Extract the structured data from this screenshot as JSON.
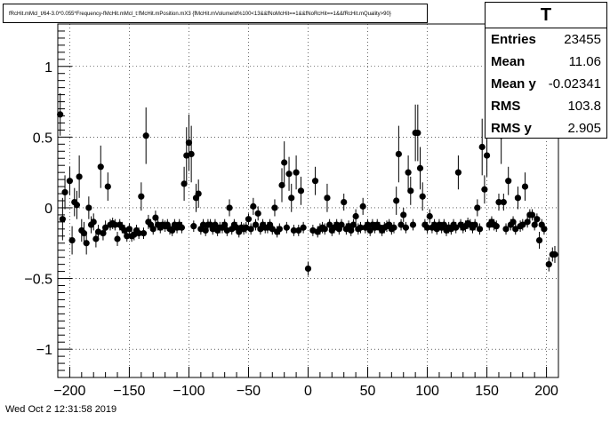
{
  "title": "fRcHit.mMcl_t/64-3.0*0.055*Frequency-fMcHit.mMcl_t:fMcHit.mPosition.mX3 {fMcHit.mVolumeId%100<13&&fNoMcHit==1&&fNoRcHit==1&&fRcHit.mQuality>90}",
  "stats": {
    "name": "T",
    "rows": [
      {
        "label": "Entries",
        "value": "23455"
      },
      {
        "label": "Mean",
        "value": "11.06"
      },
      {
        "label": "Mean y",
        "value": "-0.02341"
      },
      {
        "label": "RMS",
        "value": "103.8"
      },
      {
        "label": "RMS y",
        "value": "2.905"
      }
    ]
  },
  "footer": "Wed Oct  2 12:31:58 2019",
  "chart_data": {
    "type": "scatter",
    "title": "",
    "xlabel": "",
    "ylabel": "",
    "xlim": [
      -210,
      210
    ],
    "ylim": [
      -1.2,
      1.3
    ],
    "grid": true,
    "x_ticks": [
      -200,
      -150,
      -100,
      -50,
      0,
      50,
      100,
      150,
      200
    ],
    "x_tick_labels": [
      "−200",
      "−150",
      "−100",
      "−50",
      "0",
      "50",
      "100",
      "150",
      "200"
    ],
    "y_ticks": [
      -1,
      -0.5,
      0,
      0.5,
      1
    ],
    "y_tick_labels": [
      "−1",
      "−0.5",
      "0",
      "0.5",
      "1"
    ],
    "points": [
      {
        "x": -208,
        "y": 0.66,
        "err": 0.15
      },
      {
        "x": -206,
        "y": -0.08,
        "err": 0.15
      },
      {
        "x": -204,
        "y": 0.11,
        "err": 0.12
      },
      {
        "x": -200,
        "y": 0.19,
        "err": 0.1
      },
      {
        "x": -198,
        "y": -0.23,
        "err": 0.1
      },
      {
        "x": -196,
        "y": 0.04,
        "err": 0.1
      },
      {
        "x": -194,
        "y": 0.02,
        "err": 0.1
      },
      {
        "x": -192,
        "y": 0.22,
        "err": 0.15
      },
      {
        "x": -190,
        "y": -0.16,
        "err": 0.08
      },
      {
        "x": -188,
        "y": -0.18,
        "err": 0.08
      },
      {
        "x": -186,
        "y": -0.25,
        "err": 0.08
      },
      {
        "x": -184,
        "y": 0.0,
        "err": 0.08
      },
      {
        "x": -182,
        "y": -0.12,
        "err": 0.06
      },
      {
        "x": -180,
        "y": -0.1,
        "err": 0.06
      },
      {
        "x": -178,
        "y": -0.22,
        "err": 0.06
      },
      {
        "x": -176,
        "y": -0.17,
        "err": 0.05
      },
      {
        "x": -174,
        "y": 0.29,
        "err": 0.15
      },
      {
        "x": -172,
        "y": -0.18,
        "err": 0.05
      },
      {
        "x": -170,
        "y": -0.14,
        "err": 0.05
      },
      {
        "x": -168,
        "y": 0.15,
        "err": 0.1
      },
      {
        "x": -166,
        "y": -0.12,
        "err": 0.04
      },
      {
        "x": -164,
        "y": -0.11,
        "err": 0.04
      },
      {
        "x": -162,
        "y": -0.12,
        "err": 0.04
      },
      {
        "x": -160,
        "y": -0.22,
        "err": 0.05
      },
      {
        "x": -158,
        "y": -0.12,
        "err": 0.04
      },
      {
        "x": -156,
        "y": -0.14,
        "err": 0.04
      },
      {
        "x": -154,
        "y": -0.16,
        "err": 0.04
      },
      {
        "x": -152,
        "y": -0.2,
        "err": 0.04
      },
      {
        "x": -150,
        "y": -0.15,
        "err": 0.04
      },
      {
        "x": -148,
        "y": -0.2,
        "err": 0.04
      },
      {
        "x": -146,
        "y": -0.19,
        "err": 0.04
      },
      {
        "x": -144,
        "y": -0.16,
        "err": 0.04
      },
      {
        "x": -142,
        "y": -0.18,
        "err": 0.04
      },
      {
        "x": -140,
        "y": 0.08,
        "err": 0.1
      },
      {
        "x": -138,
        "y": -0.18,
        "err": 0.04
      },
      {
        "x": -136,
        "y": 0.51,
        "err": 0.2
      },
      {
        "x": -134,
        "y": -0.1,
        "err": 0.05
      },
      {
        "x": -132,
        "y": -0.12,
        "err": 0.04
      },
      {
        "x": -130,
        "y": -0.15,
        "err": 0.04
      },
      {
        "x": -128,
        "y": -0.07,
        "err": 0.05
      },
      {
        "x": -126,
        "y": -0.12,
        "err": 0.04
      },
      {
        "x": -124,
        "y": -0.14,
        "err": 0.04
      },
      {
        "x": -122,
        "y": -0.12,
        "err": 0.04
      },
      {
        "x": -120,
        "y": -0.13,
        "err": 0.04
      },
      {
        "x": -118,
        "y": -0.12,
        "err": 0.04
      },
      {
        "x": -116,
        "y": -0.15,
        "err": 0.04
      },
      {
        "x": -114,
        "y": -0.16,
        "err": 0.04
      },
      {
        "x": -112,
        "y": -0.12,
        "err": 0.04
      },
      {
        "x": -110,
        "y": -0.14,
        "err": 0.04
      },
      {
        "x": -108,
        "y": -0.12,
        "err": 0.04
      },
      {
        "x": -106,
        "y": -0.14,
        "err": 0.04
      },
      {
        "x": -104,
        "y": 0.17,
        "err": 0.12
      },
      {
        "x": -102,
        "y": 0.37,
        "err": 0.2
      },
      {
        "x": -100,
        "y": 0.46,
        "err": 0.2
      },
      {
        "x": -98,
        "y": 0.38,
        "err": 0.2
      },
      {
        "x": -96,
        "y": -0.13,
        "err": 0.04
      },
      {
        "x": -94,
        "y": 0.07,
        "err": 0.1
      },
      {
        "x": -92,
        "y": 0.1,
        "err": 0.1
      },
      {
        "x": -90,
        "y": -0.15,
        "err": 0.04
      },
      {
        "x": -88,
        "y": -0.12,
        "err": 0.04
      },
      {
        "x": -86,
        "y": -0.16,
        "err": 0.04
      },
      {
        "x": -84,
        "y": -0.12,
        "err": 0.04
      },
      {
        "x": -82,
        "y": -0.12,
        "err": 0.04
      },
      {
        "x": -80,
        "y": -0.15,
        "err": 0.04
      },
      {
        "x": -78,
        "y": -0.12,
        "err": 0.04
      },
      {
        "x": -76,
        "y": -0.16,
        "err": 0.04
      },
      {
        "x": -74,
        "y": -0.14,
        "err": 0.04
      },
      {
        "x": -72,
        "y": -0.14,
        "err": 0.04
      },
      {
        "x": -70,
        "y": -0.12,
        "err": 0.04
      },
      {
        "x": -68,
        "y": -0.16,
        "err": 0.04
      },
      {
        "x": -66,
        "y": 0.0,
        "err": 0.06
      },
      {
        "x": -64,
        "y": -0.15,
        "err": 0.04
      },
      {
        "x": -62,
        "y": -0.12,
        "err": 0.04
      },
      {
        "x": -60,
        "y": -0.14,
        "err": 0.04
      },
      {
        "x": -58,
        "y": -0.17,
        "err": 0.04
      },
      {
        "x": -56,
        "y": -0.14,
        "err": 0.04
      },
      {
        "x": -54,
        "y": -0.15,
        "err": 0.04
      },
      {
        "x": -52,
        "y": -0.14,
        "err": 0.04
      },
      {
        "x": -50,
        "y": -0.08,
        "err": 0.04
      },
      {
        "x": -48,
        "y": -0.15,
        "err": 0.04
      },
      {
        "x": -46,
        "y": 0.01,
        "err": 0.06
      },
      {
        "x": -44,
        "y": -0.12,
        "err": 0.04
      },
      {
        "x": -42,
        "y": -0.04,
        "err": 0.05
      },
      {
        "x": -40,
        "y": -0.15,
        "err": 0.04
      },
      {
        "x": -38,
        "y": -0.12,
        "err": 0.04
      },
      {
        "x": -36,
        "y": -0.14,
        "err": 0.04
      },
      {
        "x": -34,
        "y": -0.14,
        "err": 0.04
      },
      {
        "x": -32,
        "y": -0.12,
        "err": 0.04
      },
      {
        "x": -30,
        "y": -0.15,
        "err": 0.04
      },
      {
        "x": -28,
        "y": 0.0,
        "err": 0.06
      },
      {
        "x": -26,
        "y": -0.17,
        "err": 0.04
      },
      {
        "x": -24,
        "y": -0.15,
        "err": 0.04
      },
      {
        "x": -22,
        "y": 0.16,
        "err": 0.12
      },
      {
        "x": -20,
        "y": 0.32,
        "err": 0.15
      },
      {
        "x": -18,
        "y": -0.14,
        "err": 0.04
      },
      {
        "x": -16,
        "y": 0.24,
        "err": 0.12
      },
      {
        "x": -14,
        "y": 0.07,
        "err": 0.1
      },
      {
        "x": -12,
        "y": -0.16,
        "err": 0.04
      },
      {
        "x": -10,
        "y": 0.25,
        "err": 0.12
      },
      {
        "x": -8,
        "y": -0.16,
        "err": 0.04
      },
      {
        "x": -6,
        "y": 0.12,
        "err": 0.1
      },
      {
        "x": -4,
        "y": -0.14,
        "err": 0.04
      },
      {
        "x": 0,
        "y": -0.43,
        "err": 0.05
      },
      {
        "x": 4,
        "y": -0.16,
        "err": 0.04
      },
      {
        "x": 6,
        "y": 0.19,
        "err": 0.1
      },
      {
        "x": 8,
        "y": -0.17,
        "err": 0.04
      },
      {
        "x": 10,
        "y": -0.15,
        "err": 0.04
      },
      {
        "x": 12,
        "y": -0.14,
        "err": 0.04
      },
      {
        "x": 14,
        "y": -0.15,
        "err": 0.04
      },
      {
        "x": 16,
        "y": 0.07,
        "err": 0.1
      },
      {
        "x": 18,
        "y": -0.12,
        "err": 0.04
      },
      {
        "x": 20,
        "y": -0.16,
        "err": 0.04
      },
      {
        "x": 22,
        "y": -0.14,
        "err": 0.04
      },
      {
        "x": 24,
        "y": -0.12,
        "err": 0.04
      },
      {
        "x": 26,
        "y": -0.15,
        "err": 0.04
      },
      {
        "x": 28,
        "y": -0.12,
        "err": 0.04
      },
      {
        "x": 30,
        "y": 0.04,
        "err": 0.06
      },
      {
        "x": 32,
        "y": -0.15,
        "err": 0.04
      },
      {
        "x": 34,
        "y": -0.13,
        "err": 0.04
      },
      {
        "x": 36,
        "y": -0.16,
        "err": 0.04
      },
      {
        "x": 38,
        "y": -0.12,
        "err": 0.04
      },
      {
        "x": 40,
        "y": -0.06,
        "err": 0.05
      },
      {
        "x": 42,
        "y": -0.15,
        "err": 0.04
      },
      {
        "x": 44,
        "y": -0.14,
        "err": 0.04
      },
      {
        "x": 46,
        "y": 0.01,
        "err": 0.06
      },
      {
        "x": 48,
        "y": -0.14,
        "err": 0.04
      },
      {
        "x": 50,
        "y": -0.12,
        "err": 0.04
      },
      {
        "x": 52,
        "y": -0.16,
        "err": 0.04
      },
      {
        "x": 54,
        "y": -0.12,
        "err": 0.04
      },
      {
        "x": 56,
        "y": -0.14,
        "err": 0.04
      },
      {
        "x": 58,
        "y": -0.12,
        "err": 0.04
      },
      {
        "x": 60,
        "y": -0.14,
        "err": 0.04
      },
      {
        "x": 62,
        "y": -0.16,
        "err": 0.04
      },
      {
        "x": 64,
        "y": -0.14,
        "err": 0.04
      },
      {
        "x": 66,
        "y": -0.13,
        "err": 0.04
      },
      {
        "x": 68,
        "y": -0.12,
        "err": 0.04
      },
      {
        "x": 70,
        "y": -0.15,
        "err": 0.04
      },
      {
        "x": 72,
        "y": -0.14,
        "err": 0.04
      },
      {
        "x": 74,
        "y": 0.05,
        "err": 0.1
      },
      {
        "x": 76,
        "y": 0.38,
        "err": 0.2
      },
      {
        "x": 78,
        "y": -0.12,
        "err": 0.04
      },
      {
        "x": 80,
        "y": -0.05,
        "err": 0.05
      },
      {
        "x": 82,
        "y": -0.14,
        "err": 0.04
      },
      {
        "x": 84,
        "y": 0.25,
        "err": 0.12
      },
      {
        "x": 86,
        "y": 0.12,
        "err": 0.1
      },
      {
        "x": 88,
        "y": -0.12,
        "err": 0.04
      },
      {
        "x": 90,
        "y": 0.53,
        "err": 0.2
      },
      {
        "x": 92,
        "y": 0.53,
        "err": 0.2
      },
      {
        "x": 94,
        "y": 0.28,
        "err": 0.15
      },
      {
        "x": 96,
        "y": 0.08,
        "err": 0.1
      },
      {
        "x": 98,
        "y": -0.12,
        "err": 0.04
      },
      {
        "x": 100,
        "y": -0.14,
        "err": 0.04
      },
      {
        "x": 102,
        "y": -0.06,
        "err": 0.05
      },
      {
        "x": 104,
        "y": -0.14,
        "err": 0.04
      },
      {
        "x": 106,
        "y": -0.12,
        "err": 0.04
      },
      {
        "x": 108,
        "y": -0.15,
        "err": 0.04
      },
      {
        "x": 110,
        "y": -0.12,
        "err": 0.04
      },
      {
        "x": 112,
        "y": -0.14,
        "err": 0.04
      },
      {
        "x": 114,
        "y": -0.12,
        "err": 0.04
      },
      {
        "x": 116,
        "y": -0.16,
        "err": 0.04
      },
      {
        "x": 118,
        "y": -0.14,
        "err": 0.04
      },
      {
        "x": 120,
        "y": -0.15,
        "err": 0.04
      },
      {
        "x": 122,
        "y": -0.12,
        "err": 0.04
      },
      {
        "x": 124,
        "y": -0.14,
        "err": 0.04
      },
      {
        "x": 126,
        "y": 0.25,
        "err": 0.12
      },
      {
        "x": 128,
        "y": -0.12,
        "err": 0.04
      },
      {
        "x": 130,
        "y": -0.14,
        "err": 0.04
      },
      {
        "x": 132,
        "y": -0.13,
        "err": 0.04
      },
      {
        "x": 134,
        "y": -0.11,
        "err": 0.04
      },
      {
        "x": 136,
        "y": -0.12,
        "err": 0.04
      },
      {
        "x": 138,
        "y": -0.14,
        "err": 0.04
      },
      {
        "x": 140,
        "y": -0.12,
        "err": 0.04
      },
      {
        "x": 142,
        "y": 0.0,
        "err": 0.06
      },
      {
        "x": 144,
        "y": -0.15,
        "err": 0.04
      },
      {
        "x": 146,
        "y": 0.43,
        "err": 0.2
      },
      {
        "x": 148,
        "y": 0.13,
        "err": 0.1
      },
      {
        "x": 150,
        "y": 0.37,
        "err": 0.15
      },
      {
        "x": 152,
        "y": -0.12,
        "err": 0.04
      },
      {
        "x": 154,
        "y": -0.1,
        "err": 0.04
      },
      {
        "x": 156,
        "y": -0.12,
        "err": 0.04
      },
      {
        "x": 158,
        "y": -0.13,
        "err": 0.04
      },
      {
        "x": 160,
        "y": 0.04,
        "err": 0.06
      },
      {
        "x": 162,
        "y": 0.51,
        "err": 0.2
      },
      {
        "x": 164,
        "y": 0.04,
        "err": 0.06
      },
      {
        "x": 166,
        "y": -0.15,
        "err": 0.04
      },
      {
        "x": 168,
        "y": 0.19,
        "err": 0.1
      },
      {
        "x": 170,
        "y": -0.12,
        "err": 0.04
      },
      {
        "x": 172,
        "y": -0.1,
        "err": 0.04
      },
      {
        "x": 174,
        "y": -0.15,
        "err": 0.04
      },
      {
        "x": 176,
        "y": 0.07,
        "err": 0.08
      },
      {
        "x": 178,
        "y": -0.13,
        "err": 0.04
      },
      {
        "x": 180,
        "y": -0.12,
        "err": 0.04
      },
      {
        "x": 182,
        "y": 0.15,
        "err": 0.1
      },
      {
        "x": 184,
        "y": -0.1,
        "err": 0.04
      },
      {
        "x": 186,
        "y": -0.05,
        "err": 0.04
      },
      {
        "x": 188,
        "y": -0.05,
        "err": 0.04
      },
      {
        "x": 190,
        "y": -0.12,
        "err": 0.04
      },
      {
        "x": 192,
        "y": -0.08,
        "err": 0.04
      },
      {
        "x": 194,
        "y": -0.23,
        "err": 0.06
      },
      {
        "x": 196,
        "y": -0.12,
        "err": 0.04
      },
      {
        "x": 198,
        "y": -0.15,
        "err": 0.04
      },
      {
        "x": 202,
        "y": -0.4,
        "err": 0.05
      },
      {
        "x": 205,
        "y": -0.33,
        "err": 0.05
      },
      {
        "x": 207,
        "y": -0.33,
        "err": 0.06
      }
    ]
  }
}
